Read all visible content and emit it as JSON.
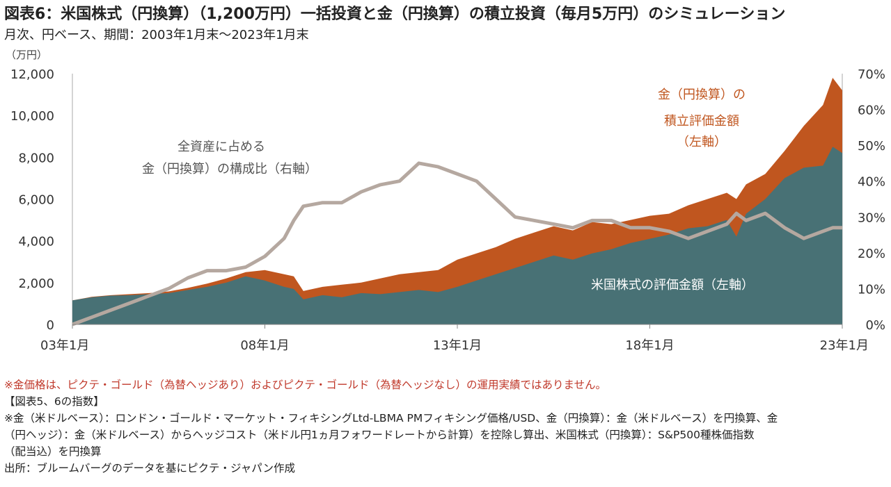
{
  "title": "図表6：米国株式（円換算）（1,200万円）一括投資と金（円換算）の積立投資（毎月5万円）のシミュレーション",
  "subtitle": "月次、円ベース、期間：2003年1月末～2023年1月末",
  "notes": {
    "line1": "※金価格は、ピクテ・ゴールド（為替ヘッジあり）およびピクテ・ゴールド（為替ヘッジなし）の運用実績ではありません。",
    "line2": "【図表5、6の指数】",
    "line3": "※金（米ドルベース）：ロンドン・ゴールド・マーケット・フィキシングLtd-LBMA PMフィキシング価格/USD、金（円換算）：金（米ドルベース）を円換算、金",
    "line4": "（円ヘッジ）：金（米ドルベース）からヘッジコスト（米ドル円1ヵ月フォワードレートから計算）を控除し算出、米国株式（円換算）：S&P500種株価指数",
    "line5": "（配当込）を円換算",
    "line6": "出所：ブルームバーグのデータを基にピクテ・ジャパン作成"
  },
  "chart_data": {
    "type": "area",
    "left_axis_unit": "（万円）",
    "left_ylim": [
      0,
      12000
    ],
    "left_ticks": [
      "0",
      "2,000",
      "4,000",
      "6,000",
      "8,000",
      "10,000",
      "12,000"
    ],
    "right_ylim": [
      0,
      70
    ],
    "right_ticks": [
      "0%",
      "10%",
      "20%",
      "30%",
      "40%",
      "50%",
      "60%",
      "70%"
    ],
    "x_ticks": [
      "03年1月",
      "08年1月",
      "13年1月",
      "18年1月",
      "23年1月"
    ],
    "x": [
      2003.0,
      2003.5,
      2004.0,
      2004.5,
      2005.0,
      2005.5,
      2006.0,
      2006.5,
      2007.0,
      2007.5,
      2008.0,
      2008.5,
      2008.75,
      2009.0,
      2009.5,
      2010.0,
      2010.5,
      2011.0,
      2011.5,
      2012.0,
      2012.5,
      2013.0,
      2013.5,
      2014.0,
      2014.5,
      2015.0,
      2015.5,
      2016.0,
      2016.5,
      2017.0,
      2017.5,
      2018.0,
      2018.5,
      2019.0,
      2019.5,
      2020.0,
      2020.25,
      2020.5,
      2021.0,
      2021.5,
      2022.0,
      2022.5,
      2022.75,
      2023.0
    ],
    "series": [
      {
        "name": "米国株式の評価金額（左軸）",
        "color": "#487175",
        "values": [
          1150,
          1300,
          1380,
          1400,
          1450,
          1500,
          1650,
          1800,
          2000,
          2300,
          2100,
          1800,
          1700,
          1200,
          1400,
          1300,
          1500,
          1450,
          1550,
          1650,
          1550,
          1800,
          2100,
          2400,
          2700,
          3000,
          3300,
          3100,
          3400,
          3600,
          3900,
          4100,
          4300,
          4600,
          4700,
          5000,
          4200,
          5300,
          6000,
          7000,
          7500,
          7600,
          8500,
          8200
        ]
      },
      {
        "name": "金（円換算）の積立評価金額（左軸）",
        "color": "#c0561f",
        "values": [
          1150,
          1320,
          1400,
          1450,
          1500,
          1580,
          1750,
          1950,
          2200,
          2500,
          2600,
          2400,
          2300,
          1600,
          1800,
          1900,
          2000,
          2200,
          2400,
          2500,
          2600,
          3100,
          3400,
          3700,
          4100,
          4400,
          4700,
          4500,
          4900,
          4800,
          5000,
          5200,
          5300,
          5700,
          6000,
          6300,
          6000,
          6700,
          7200,
          8300,
          9500,
          10500,
          11800,
          11200
        ]
      },
      {
        "name": "全資産に占める金（円換算）の構成比（右軸）",
        "color": "#b5a8a0",
        "axis": "right",
        "values": [
          0,
          2,
          4,
          6,
          8,
          10,
          13,
          15,
          15,
          16,
          19,
          24,
          29,
          33,
          34,
          34,
          37,
          39,
          40,
          45,
          44,
          42,
          40,
          35,
          30,
          29,
          28,
          27,
          29,
          29,
          27,
          27,
          26,
          24,
          26,
          28,
          31,
          29,
          31,
          27,
          24,
          26,
          27,
          27
        ]
      }
    ],
    "annotations": {
      "gold_area_label": [
        "金（円換算）の",
        "積立評価金額",
        "（左軸）"
      ],
      "ratio_label": [
        "全資産に占める",
        "金（円換算）の構成比（右軸）"
      ],
      "stock_label": "米国株式の評価金額（左軸）"
    }
  }
}
